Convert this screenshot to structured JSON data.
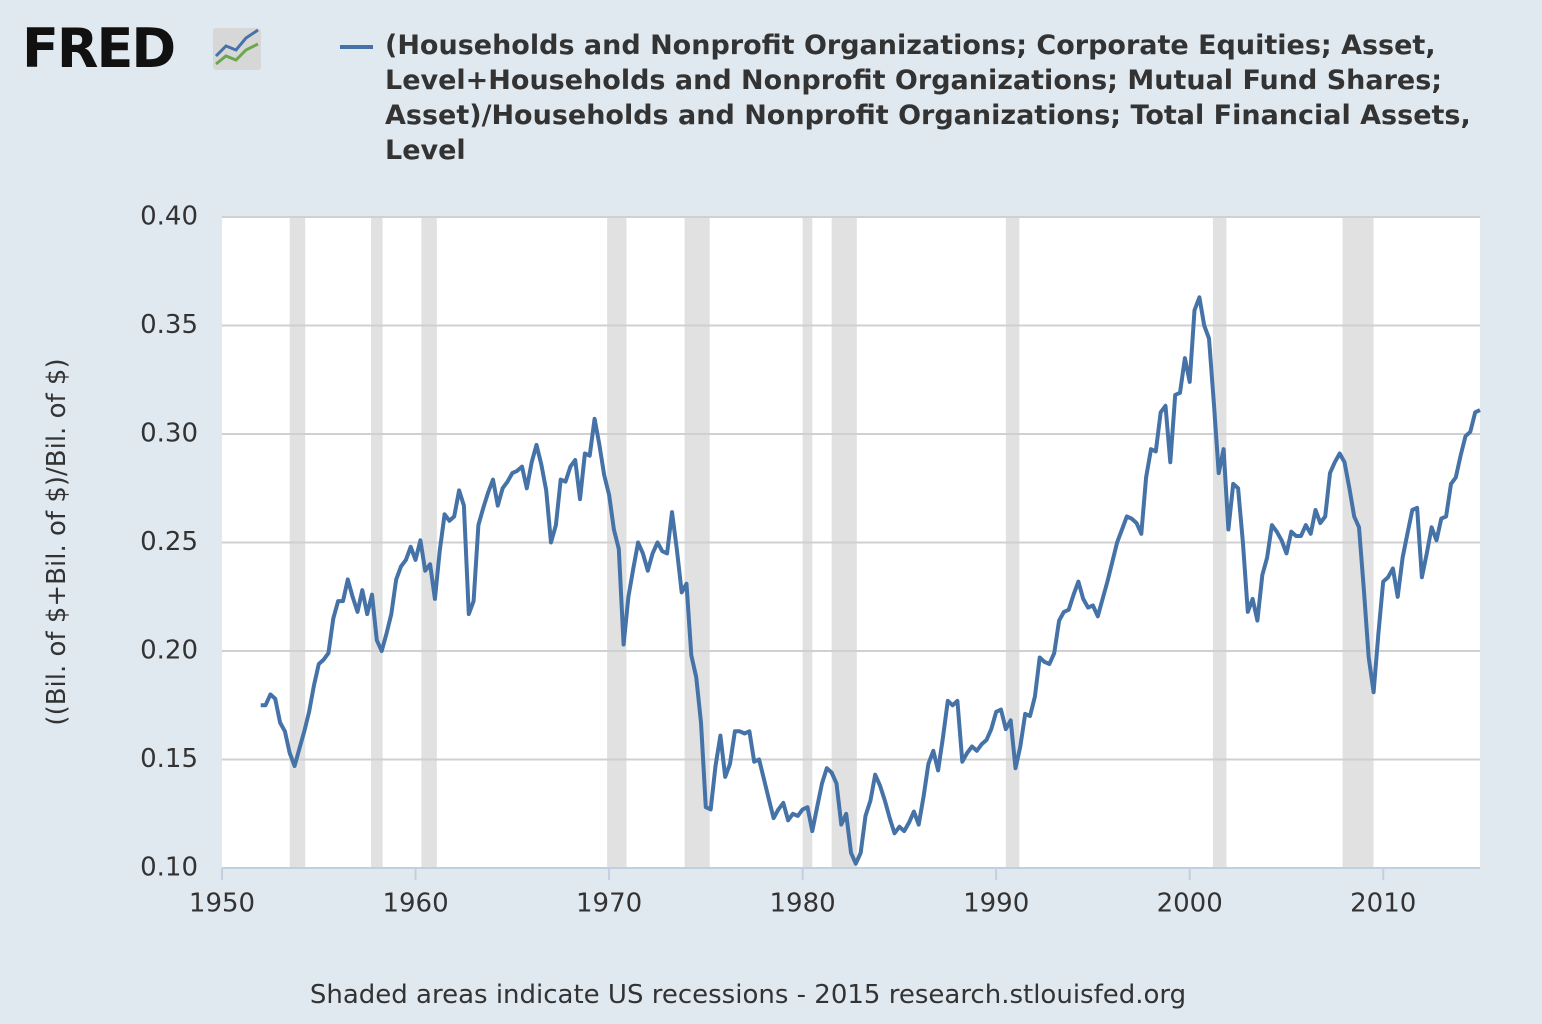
{
  "chart_data": {
    "type": "line",
    "logo": "FRED",
    "ylabel": "((Bil. of $+Bil. of $)/Bil. of $)",
    "footer": "Shaded areas indicate US recessions - 2015 research.stlouisfed.org",
    "xlim": [
      1950,
      2015
    ],
    "xticks": [
      1950,
      1960,
      1970,
      1980,
      1990,
      2000,
      2010
    ],
    "ylim": [
      0.1,
      0.4
    ],
    "yticks": [
      {
        "value": 0.1,
        "label": "0.10"
      },
      0.15,
      {
        "value": 0.2,
        "label": "0.20"
      },
      0.25,
      {
        "value": 0.3,
        "label": "0.30"
      },
      0.35,
      {
        "value": 0.4,
        "label": "0.40"
      }
    ],
    "grid": true,
    "recessions": [
      [
        1953.5,
        1954.3
      ],
      [
        1957.7,
        1958.3
      ],
      [
        1960.3,
        1961.1
      ],
      [
        1969.9,
        1970.9
      ],
      [
        1973.9,
        1975.2
      ],
      [
        1980.0,
        1980.5
      ],
      [
        1981.5,
        1982.8
      ],
      [
        1990.5,
        1991.2
      ],
      [
        2001.2,
        2001.9
      ],
      [
        2007.9,
        2009.5
      ]
    ],
    "recession_color": "#e1e1e1",
    "x": [
      1952,
      1952.25,
      1952.5,
      1952.75,
      1953,
      1953.25,
      1953.5,
      1953.75,
      1954,
      1954.25,
      1954.5,
      1954.75,
      1955,
      1955.25,
      1955.5,
      1955.75,
      1956,
      1956.25,
      1956.5,
      1956.75,
      1957,
      1957.25,
      1957.5,
      1957.75,
      1958,
      1958.25,
      1958.5,
      1958.75,
      1959,
      1959.25,
      1959.5,
      1959.75,
      1960,
      1960.25,
      1960.5,
      1960.75,
      1961,
      1961.25,
      1961.5,
      1961.75,
      1962,
      1962.25,
      1962.5,
      1962.75,
      1963,
      1963.25,
      1963.5,
      1963.75,
      1964,
      1964.25,
      1964.5,
      1964.75,
      1965,
      1965.25,
      1965.5,
      1965.75,
      1966,
      1966.25,
      1966.5,
      1966.75,
      1967,
      1967.25,
      1967.5,
      1967.75,
      1968,
      1968.25,
      1968.5,
      1968.75,
      1969,
      1969.25,
      1969.5,
      1969.75,
      1970,
      1970.25,
      1970.5,
      1970.75,
      1971,
      1971.25,
      1971.5,
      1971.75,
      1972,
      1972.25,
      1972.5,
      1972.75,
      1973,
      1973.25,
      1973.5,
      1973.75,
      1974,
      1974.25,
      1974.5,
      1974.75,
      1975,
      1975.25,
      1975.5,
      1975.75,
      1976,
      1976.25,
      1976.5,
      1976.75,
      1977,
      1977.25,
      1977.5,
      1977.75,
      1978,
      1978.25,
      1978.5,
      1978.75,
      1979,
      1979.25,
      1979.5,
      1979.75,
      1980,
      1980.25,
      1980.5,
      1980.75,
      1981,
      1981.25,
      1981.5,
      1981.75,
      1982,
      1982.25,
      1982.5,
      1982.75,
      1983,
      1983.25,
      1983.5,
      1983.75,
      1984,
      1984.25,
      1984.5,
      1984.75,
      1985,
      1985.25,
      1985.5,
      1985.75,
      1986,
      1986.25,
      1986.5,
      1986.75,
      1987,
      1987.25,
      1987.5,
      1987.75,
      1988,
      1988.25,
      1988.5,
      1988.75,
      1989,
      1989.25,
      1989.5,
      1989.75,
      1990,
      1990.25,
      1990.5,
      1990.75,
      1991,
      1991.25,
      1991.5,
      1991.75,
      1992,
      1992.25,
      1992.5,
      1992.75,
      1993,
      1993.25,
      1993.5,
      1993.75,
      1994,
      1994.25,
      1994.5,
      1994.75,
      1995,
      1995.25,
      1995.5,
      1995.75,
      1996,
      1996.25,
      1996.5,
      1996.75,
      1997,
      1997.25,
      1997.5,
      1997.75,
      1998,
      1998.25,
      1998.5,
      1998.75,
      1999,
      1999.25,
      1999.5,
      1999.75,
      2000,
      2000.25,
      2000.5,
      2000.75,
      2001,
      2001.25,
      2001.5,
      2001.75,
      2002,
      2002.25,
      2002.5,
      2002.75,
      2003,
      2003.25,
      2003.5,
      2003.75,
      2004,
      2004.25,
      2004.5,
      2004.75,
      2005,
      2005.25,
      2005.5,
      2005.75,
      2006,
      2006.25,
      2006.5,
      2006.75,
      2007,
      2007.25,
      2007.5,
      2007.75,
      2008,
      2008.25,
      2008.5,
      2008.75,
      2009,
      2009.25,
      2009.5,
      2009.75,
      2010,
      2010.25,
      2010.5,
      2010.75,
      2011,
      2011.25,
      2011.5,
      2011.75,
      2012,
      2012.25,
      2012.5,
      2012.75,
      2013,
      2013.25,
      2013.5,
      2013.75,
      2014,
      2014.25,
      2014.5,
      2014.75,
      2015
    ],
    "series": [
      {
        "name": "(Households and Nonprofit Organizations; Corporate Equities; Asset, Level+Households and Nonprofit Organizations; Mutual Fund Shares; Asset)/Households and Nonprofit Organizations; Total Financial Assets, Level",
        "color": "#4572a7",
        "values": [
          0.175,
          0.175,
          0.18,
          0.178,
          0.167,
          0.163,
          0.153,
          0.147,
          0.155,
          0.163,
          0.172,
          0.184,
          0.194,
          0.196,
          0.199,
          0.215,
          0.223,
          0.223,
          0.233,
          0.225,
          0.218,
          0.228,
          0.217,
          0.226,
          0.205,
          0.2,
          0.208,
          0.217,
          0.233,
          0.239,
          0.242,
          0.248,
          0.242,
          0.251,
          0.237,
          0.24,
          0.224,
          0.246,
          0.263,
          0.26,
          0.262,
          0.274,
          0.267,
          0.217,
          0.223,
          0.258,
          0.266,
          0.273,
          0.279,
          0.267,
          0.275,
          0.278,
          0.282,
          0.283,
          0.285,
          0.275,
          0.287,
          0.295,
          0.286,
          0.274,
          0.25,
          0.258,
          0.279,
          0.278,
          0.285,
          0.288,
          0.27,
          0.291,
          0.29,
          0.307,
          0.295,
          0.281,
          0.272,
          0.256,
          0.247,
          0.203,
          0.225,
          0.238,
          0.25,
          0.245,
          0.237,
          0.245,
          0.25,
          0.246,
          0.245,
          0.264,
          0.247,
          0.227,
          0.231,
          0.198,
          0.188,
          0.167,
          0.128,
          0.127,
          0.147,
          0.161,
          0.142,
          0.148,
          0.163,
          0.163,
          0.162,
          0.163,
          0.149,
          0.15,
          0.141,
          0.132,
          0.123,
          0.127,
          0.13,
          0.122,
          0.125,
          0.124,
          0.127,
          0.128,
          0.117,
          0.128,
          0.139,
          0.146,
          0.144,
          0.139,
          0.12,
          0.125,
          0.107,
          0.102,
          0.107,
          0.124,
          0.131,
          0.143,
          0.138,
          0.131,
          0.123,
          0.116,
          0.119,
          0.117,
          0.121,
          0.126,
          0.12,
          0.133,
          0.148,
          0.154,
          0.145,
          0.16,
          0.177,
          0.175,
          0.177,
          0.149,
          0.153,
          0.156,
          0.154,
          0.157,
          0.159,
          0.164,
          0.172,
          0.173,
          0.164,
          0.168,
          0.146,
          0.156,
          0.171,
          0.17,
          0.179,
          0.197,
          0.195,
          0.194,
          0.199,
          0.214,
          0.218,
          0.219,
          0.226,
          0.232,
          0.224,
          0.22,
          0.221,
          0.216,
          0.224,
          0.232,
          0.241,
          0.25,
          0.256,
          0.262,
          0.261,
          0.259,
          0.254,
          0.28,
          0.293,
          0.292,
          0.31,
          0.313,
          0.287,
          0.318,
          0.319,
          0.335,
          0.324,
          0.357,
          0.363,
          0.35,
          0.344,
          0.314,
          0.282,
          0.293,
          0.256,
          0.277,
          0.275,
          0.25,
          0.218,
          0.224,
          0.214,
          0.235,
          0.243,
          0.258,
          0.255,
          0.251,
          0.245,
          0.255,
          0.253,
          0.253,
          0.258,
          0.254,
          0.265,
          0.259,
          0.262,
          0.282,
          0.287,
          0.291,
          0.287,
          0.275,
          0.262,
          0.257,
          0.228,
          0.197,
          0.181,
          0.208,
          0.232,
          0.234,
          0.238,
          0.225,
          0.243,
          0.254,
          0.265,
          0.266,
          0.234,
          0.245,
          0.257,
          0.251,
          0.261,
          0.262,
          0.277,
          0.28,
          0.29,
          0.299,
          0.301,
          0.31,
          0.311
        ]
      }
    ]
  }
}
